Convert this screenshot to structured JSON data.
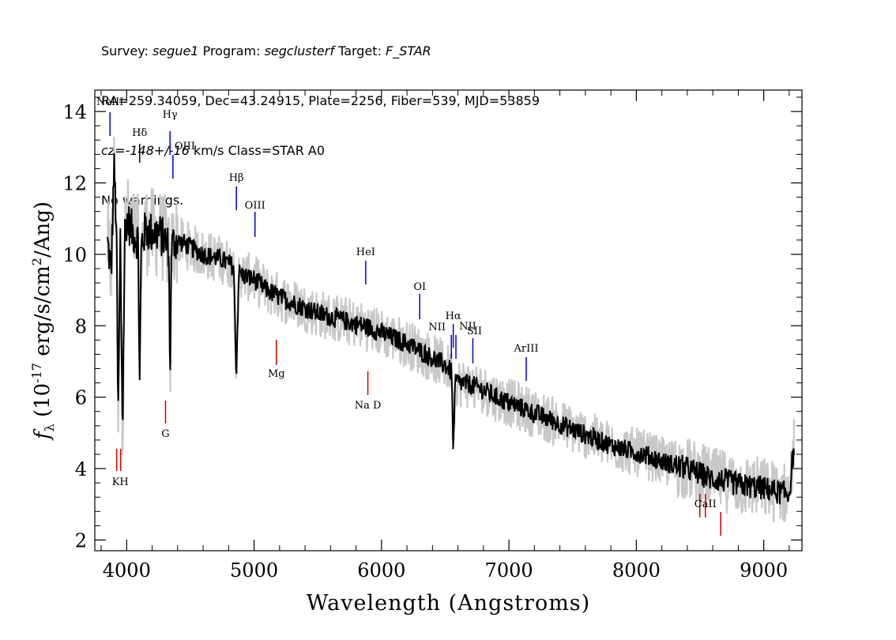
{
  "header": {
    "survey_label": "Survey:",
    "survey": "segue1",
    "program_label": "Program:",
    "program": "segclusterf",
    "target_label": "Target:",
    "target": "F_STAR",
    "line2": "RA=259.34059, Dec=43.24915, Plate=2256, Fiber=539, MJD=53859",
    "cz": "cz=-148+/-16",
    "cz_rest": " km/s Class=STAR A0",
    "warnings": "No warnings."
  },
  "chart_data": {
    "type": "line",
    "xlabel": "Wavelength (Angstroms)",
    "ylabel_main": "f",
    "ylabel_sub": "λ",
    "ylabel_rest_prefix": " (10",
    "ylabel_exp": "-17",
    "ylabel_rest_mid": " erg/s/cm",
    "ylabel_exp2": "2",
    "ylabel_rest_suffix": "/Ang)",
    "xlim": [
      3750,
      9300
    ],
    "ylim": [
      1.7,
      14.6
    ],
    "x_ticks": [
      4000,
      5000,
      6000,
      7000,
      8000,
      9000
    ],
    "x_tick_labels": [
      "4000",
      "5000",
      "6000",
      "7000",
      "8000",
      "9000"
    ],
    "y_ticks": [
      2,
      4,
      6,
      8,
      10,
      12,
      14
    ],
    "y_tick_labels": [
      "2",
      "4",
      "6",
      "8",
      "10",
      "12",
      "14"
    ],
    "series": [
      {
        "color": "#000000",
        "x": [
          3850,
          3880,
          3900,
          3920,
          3933,
          3950,
          3968,
          3985,
          4000,
          4050,
          4090,
          4102,
          4115,
          4150,
          4200,
          4250,
          4300,
          4330,
          4340,
          4352,
          4380,
          4450,
          4500,
          4550,
          4600,
          4650,
          4700,
          4750,
          4800,
          4840,
          4861,
          4880,
          4920,
          5000,
          5100,
          5200,
          5300,
          5400,
          5500,
          5600,
          5700,
          5800,
          5900,
          6000,
          6100,
          6200,
          6300,
          6400,
          6500,
          6550,
          6563,
          6580,
          6620,
          6700,
          6800,
          6900,
          7000,
          7100,
          7200,
          7300,
          7400,
          7500,
          7600,
          7700,
          7800,
          7900,
          8000,
          8100,
          8200,
          8300,
          8400,
          8500,
          8600,
          8700,
          8800,
          8900,
          9000,
          9100,
          9200,
          9240
        ],
        "values": [
          10.3,
          9.5,
          12.5,
          10.8,
          5.2,
          10.5,
          5.0,
          10.6,
          11.0,
          10.6,
          10.4,
          6.3,
          10.3,
          10.7,
          10.6,
          10.6,
          10.4,
          10.2,
          6.5,
          10.2,
          10.4,
          10.3,
          10.2,
          10.1,
          10.0,
          9.95,
          9.9,
          9.85,
          9.75,
          9.65,
          6.6,
          9.5,
          9.4,
          9.3,
          9.0,
          8.8,
          8.65,
          8.5,
          8.35,
          8.25,
          8.15,
          8.05,
          7.95,
          7.8,
          7.65,
          7.5,
          7.3,
          7.1,
          6.9,
          6.7,
          4.6,
          6.45,
          6.4,
          6.35,
          6.2,
          6.0,
          5.85,
          5.7,
          5.55,
          5.4,
          5.25,
          5.1,
          4.95,
          4.8,
          4.65,
          4.55,
          4.45,
          4.35,
          4.2,
          4.1,
          4.0,
          3.85,
          3.7,
          3.65,
          3.55,
          3.5,
          3.45,
          3.35,
          3.3,
          4.7
        ]
      }
    ],
    "error_band_color": "#c8c8c8",
    "line_labels": [
      {
        "text": "NeIII",
        "color": "#0000cc",
        "label_x": 3869,
        "tick_x": 3869
      },
      {
        "text": "Hδ",
        "color": "#000000",
        "label_x": 4102,
        "tick_x": 4102
      },
      {
        "text": "Hγ",
        "color": "#0000cc",
        "label_x": 4340,
        "tick_x": 4340
      },
      {
        "text": "OIII",
        "color": "#0000cc",
        "label_x": 4363,
        "tick_x": 4363
      },
      {
        "text": "Hβ",
        "color": "#0000cc",
        "label_x": 4861,
        "tick_x": 4861
      },
      {
        "text": "OIII",
        "color": "#0000cc",
        "label_x": 5007,
        "tick_x": 5007
      },
      {
        "text": "HeI",
        "color": "#0000cc",
        "label_x": 5876,
        "tick_x": 5876
      },
      {
        "text": "OI",
        "color": "#0000cc",
        "label_x": 6300,
        "tick_x": 6300
      },
      {
        "text": "NII",
        "color": "#0000cc",
        "label_x": 6548,
        "tick_x": 6548
      },
      {
        "text": "Hα",
        "color": "#0000cc",
        "label_x": 6563,
        "tick_x": 6563
      },
      {
        "text": "NII",
        "color": "#0000cc",
        "label_x": 6584,
        "tick_x": 6584
      },
      {
        "text": "SII",
        "color": "#0000cc",
        "label_x": 6717,
        "tick_x": 6717
      },
      {
        "text": "ArIII",
        "color": "#0000cc",
        "label_x": 7136,
        "tick_x": 7136
      },
      {
        "text": "KH",
        "color": "#cc0000",
        "label_x": 3950,
        "tick_x": 3934
      },
      {
        "text": "G",
        "color": "#cc0000",
        "label_x": 4305,
        "tick_x": 4305
      },
      {
        "text": "Mg",
        "color": "#cc0000",
        "label_x": 5175,
        "tick_x": 5175
      },
      {
        "text": "Na D",
        "color": "#cc0000",
        "label_x": 5893,
        "tick_x": 5893
      },
      {
        "text": "CaII",
        "color": "#cc0000",
        "label_x": 8542,
        "tick_x": 8542
      }
    ]
  }
}
